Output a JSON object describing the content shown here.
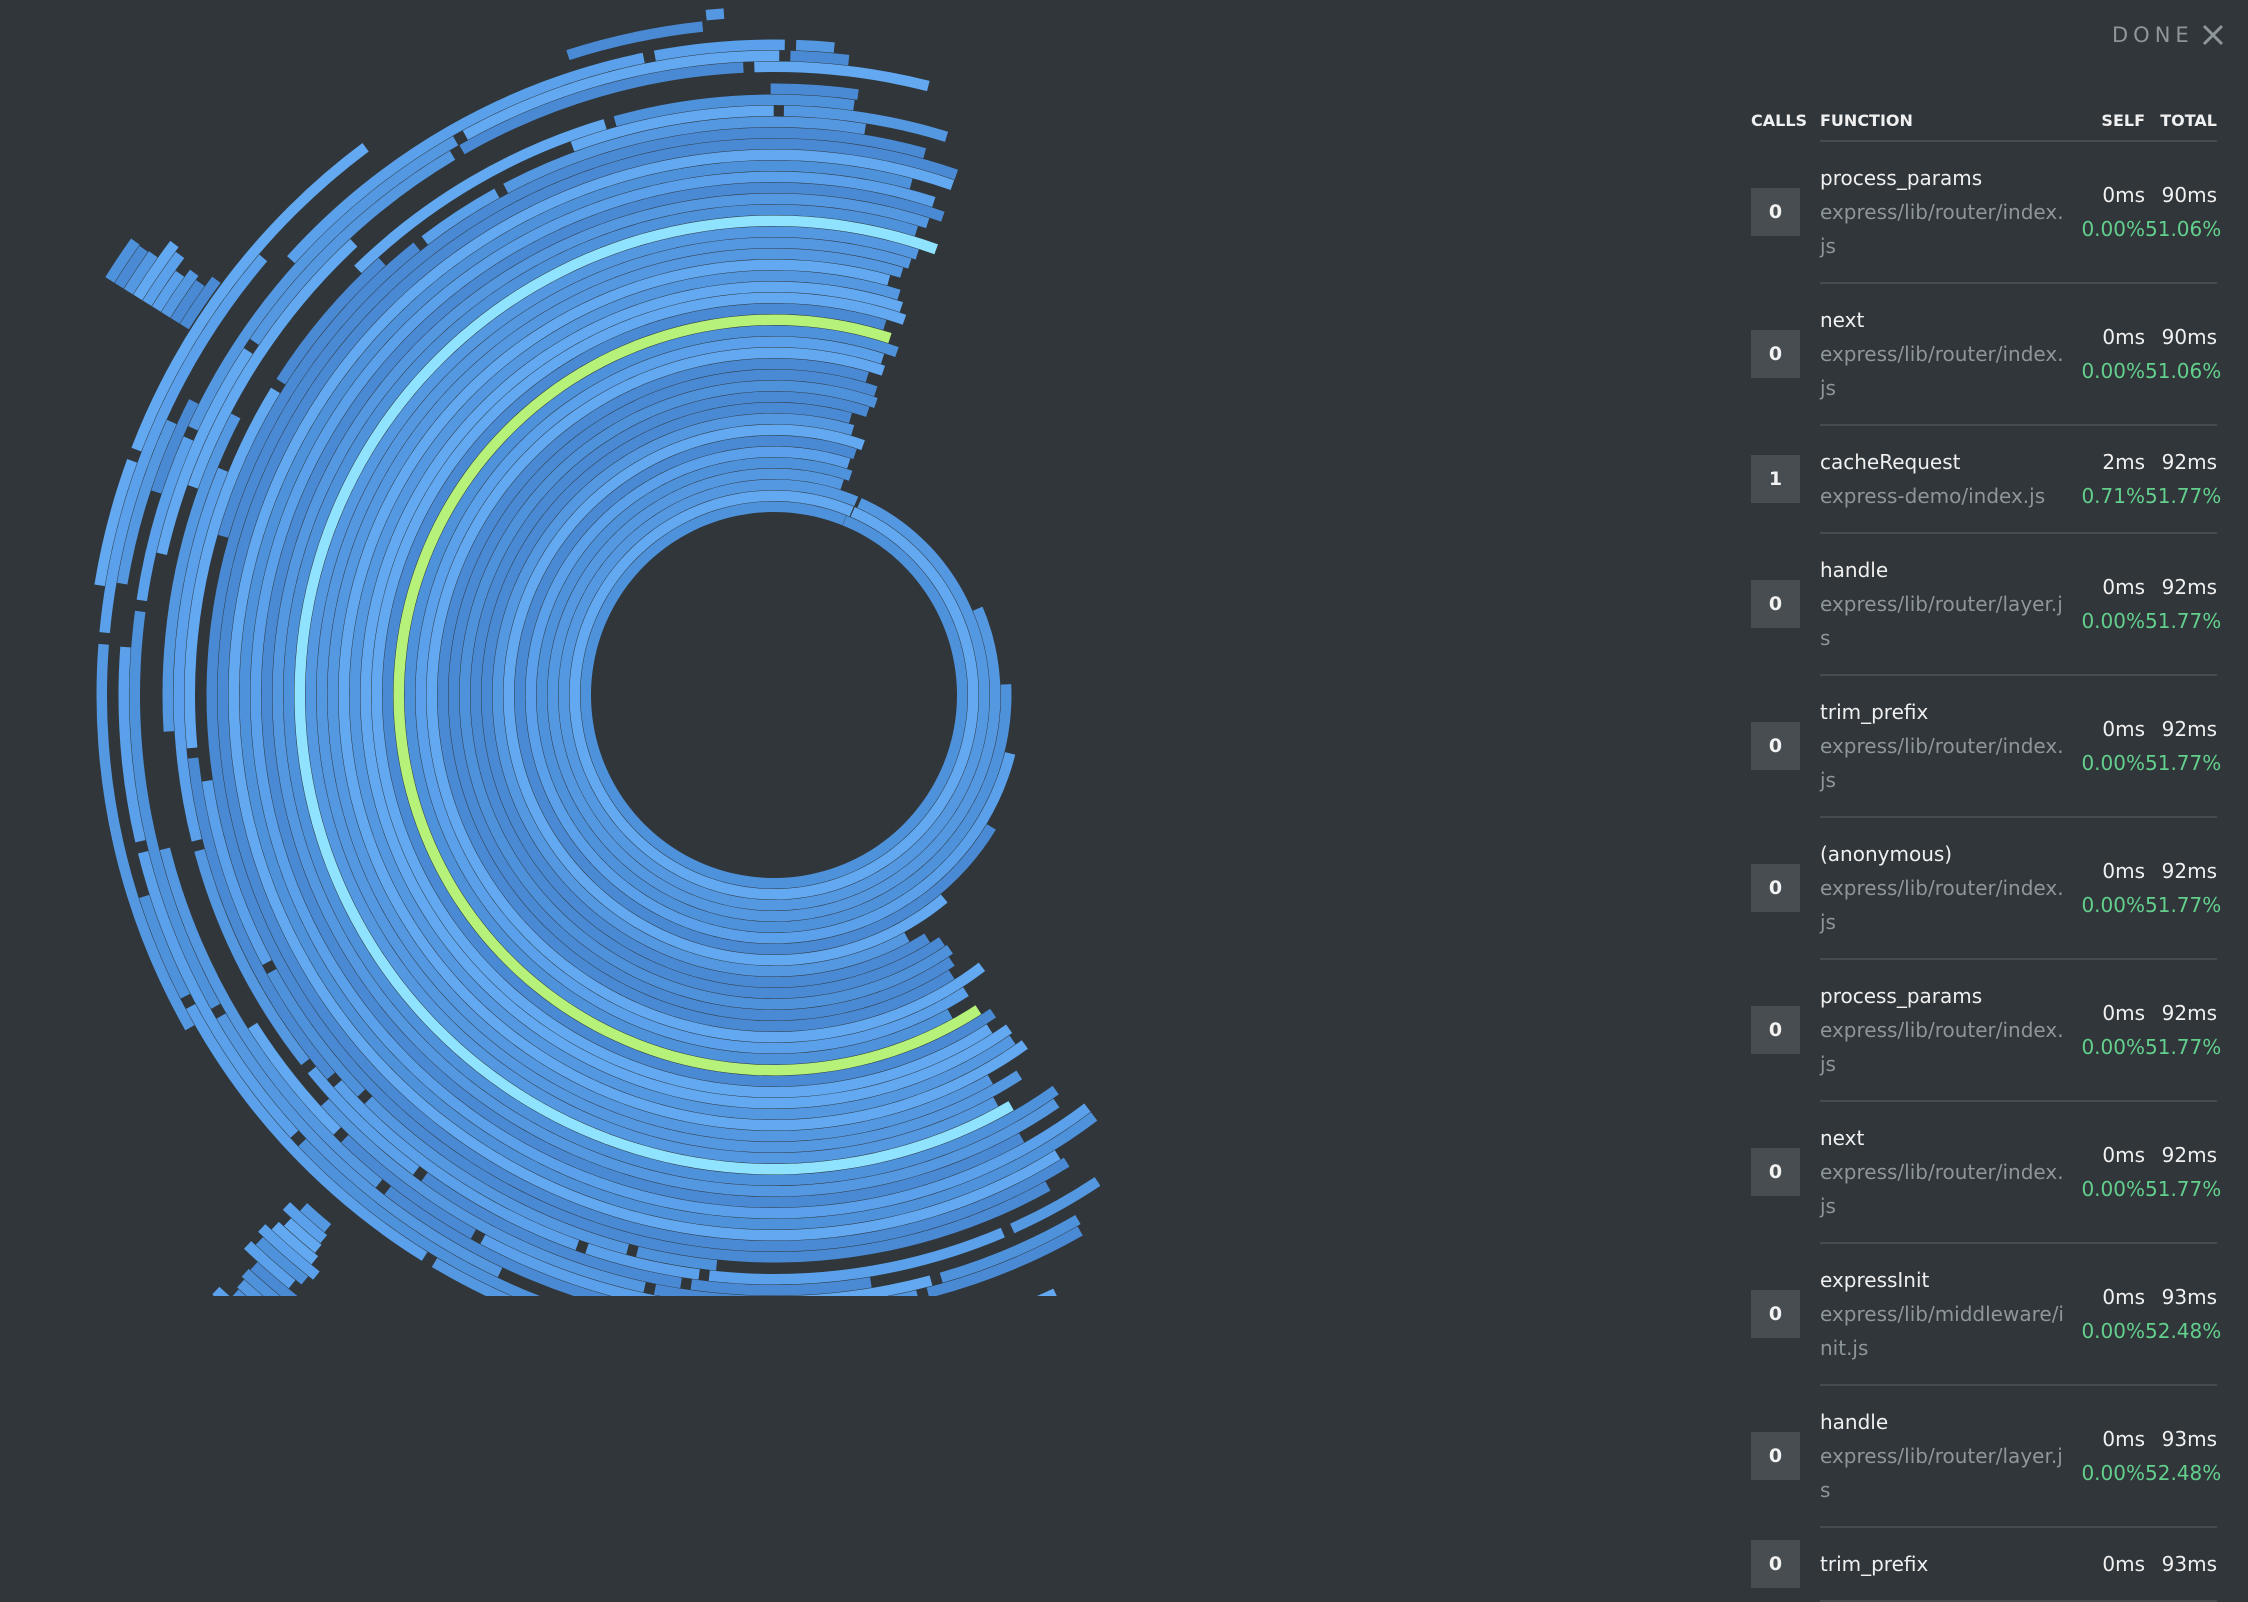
{
  "header": {
    "done": "DONE"
  },
  "table": {
    "columns": [
      "CALLS",
      "FUNCTION",
      "SELF",
      "TOTAL"
    ],
    "rows": [
      {
        "calls": "0",
        "name": "process_params",
        "file": "express/lib/router/index.js",
        "self": "0ms",
        "total": "90ms",
        "self_pct": "0.00%",
        "total_pct": "51.06%"
      },
      {
        "calls": "0",
        "name": "next",
        "file": "express/lib/router/index.js",
        "self": "0ms",
        "total": "90ms",
        "self_pct": "0.00%",
        "total_pct": "51.06%"
      },
      {
        "calls": "1",
        "name": "cacheRequest",
        "file": "express-demo/index.js",
        "self": "2ms",
        "total": "92ms",
        "self_pct": "0.71%",
        "total_pct": "51.77%"
      },
      {
        "calls": "0",
        "name": "handle",
        "file": "express/lib/router/layer.js",
        "self": "0ms",
        "total": "92ms",
        "self_pct": "0.00%",
        "total_pct": "51.77%"
      },
      {
        "calls": "0",
        "name": "trim_prefix",
        "file": "express/lib/router/index.js",
        "self": "0ms",
        "total": "92ms",
        "self_pct": "0.00%",
        "total_pct": "51.77%"
      },
      {
        "calls": "0",
        "name": "(anonymous)",
        "file": "express/lib/router/index.js",
        "self": "0ms",
        "total": "92ms",
        "self_pct": "0.00%",
        "total_pct": "51.77%"
      },
      {
        "calls": "0",
        "name": "process_params",
        "file": "express/lib/router/index.js",
        "self": "0ms",
        "total": "92ms",
        "self_pct": "0.00%",
        "total_pct": "51.77%"
      },
      {
        "calls": "0",
        "name": "next",
        "file": "express/lib/router/index.js",
        "self": "0ms",
        "total": "92ms",
        "self_pct": "0.00%",
        "total_pct": "51.77%"
      },
      {
        "calls": "0",
        "name": "expressInit",
        "file": "express/lib/middleware/init.js",
        "self": "0ms",
        "total": "93ms",
        "self_pct": "0.00%",
        "total_pct": "52.48%"
      },
      {
        "calls": "0",
        "name": "handle",
        "file": "express/lib/router/layer.js",
        "self": "0ms",
        "total": "93ms",
        "self_pct": "0.00%",
        "total_pct": "52.48%"
      },
      {
        "calls": "0",
        "name": "trim_prefix",
        "self": "0ms",
        "total": "93ms"
      }
    ]
  }
}
